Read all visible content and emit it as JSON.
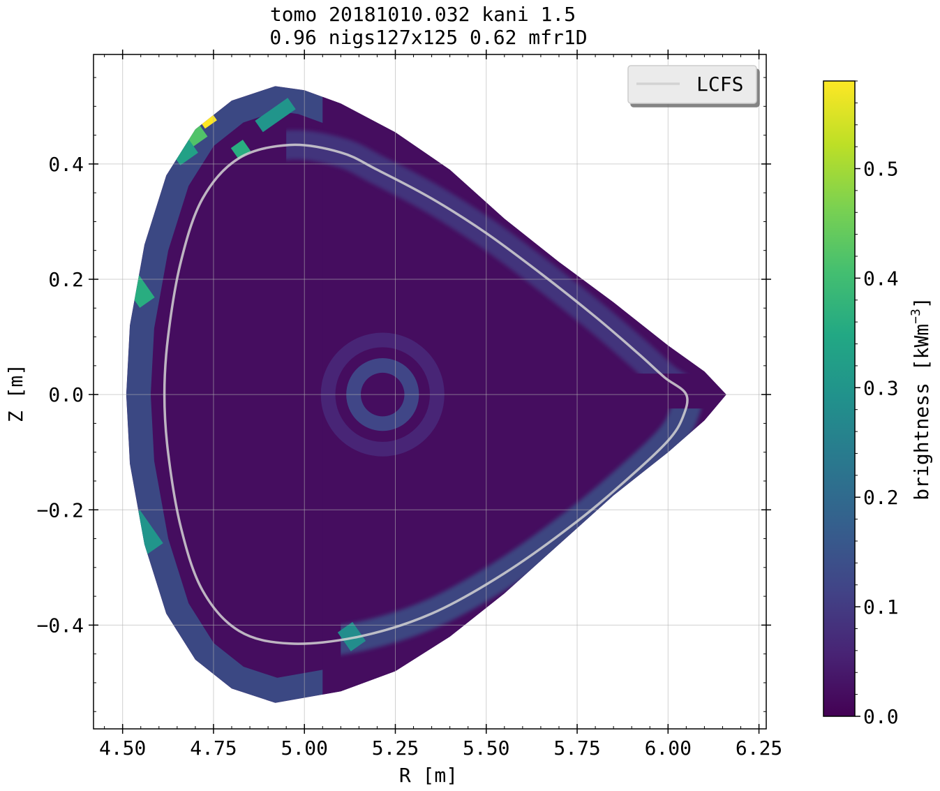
{
  "chart_data": {
    "type": "heatmap",
    "title_line1": "tomo 20181010.032 kani 1.5",
    "title_line2": "0.96  nigs127x125 0.62 mfr1D",
    "xlabel": "R [m]",
    "ylabel": "Z [m]",
    "xlim": [
      4.42,
      6.27
    ],
    "ylim": [
      -0.58,
      0.59
    ],
    "x_ticks": [
      4.5,
      4.75,
      5.0,
      5.25,
      5.5,
      5.75,
      6.0,
      6.25
    ],
    "x_tick_labels": [
      "4.50",
      "4.75",
      "5.00",
      "5.25",
      "5.50",
      "5.75",
      "6.00",
      "6.25"
    ],
    "y_ticks": [
      0.4,
      0.2,
      0.0,
      -0.2,
      -0.4
    ],
    "y_tick_labels": [
      "0.4",
      "0.2",
      "0.0",
      "−0.2",
      "−0.4"
    ],
    "grid": true,
    "legend": {
      "placement": "top-right",
      "entries": [
        {
          "label": "LCFS",
          "color": "#d3d3d3"
        }
      ]
    },
    "colorbar": {
      "label": "brightness [kWm",
      "label_sup": "−3",
      "label_end": "]",
      "range": [
        0.0,
        0.58
      ],
      "ticks": [
        0.0,
        0.1,
        0.2,
        0.3,
        0.4,
        0.5
      ],
      "tick_labels": [
        "0.0",
        "0.1",
        "0.2",
        "0.3",
        "0.4",
        "0.5"
      ],
      "colormap": "viridis"
    },
    "domain_boundary": [
      [
        4.92,
        0.535
      ],
      [
        5.0,
        0.528
      ],
      [
        5.1,
        0.505
      ],
      [
        5.25,
        0.455
      ],
      [
        5.4,
        0.39
      ],
      [
        5.55,
        0.305
      ],
      [
        5.7,
        0.23
      ],
      [
        5.85,
        0.16
      ],
      [
        6.0,
        0.085
      ],
      [
        6.1,
        0.04
      ],
      [
        6.16,
        0.0
      ],
      [
        6.1,
        -0.045
      ],
      [
        6.0,
        -0.1
      ],
      [
        5.85,
        -0.175
      ],
      [
        5.7,
        -0.26
      ],
      [
        5.55,
        -0.345
      ],
      [
        5.4,
        -0.42
      ],
      [
        5.25,
        -0.48
      ],
      [
        5.1,
        -0.515
      ],
      [
        4.92,
        -0.535
      ],
      [
        4.8,
        -0.51
      ],
      [
        4.7,
        -0.46
      ],
      [
        4.62,
        -0.38
      ],
      [
        4.56,
        -0.26
      ],
      [
        4.52,
        -0.12
      ],
      [
        4.51,
        0.0
      ],
      [
        4.52,
        0.12
      ],
      [
        4.56,
        0.26
      ],
      [
        4.62,
        0.38
      ],
      [
        4.7,
        0.46
      ],
      [
        4.8,
        0.51
      ]
    ],
    "lcfs": [
      [
        4.96,
        0.433
      ],
      [
        5.1,
        0.42
      ],
      [
        5.2,
        0.39
      ],
      [
        5.35,
        0.34
      ],
      [
        5.5,
        0.28
      ],
      [
        5.65,
        0.21
      ],
      [
        5.8,
        0.135
      ],
      [
        5.92,
        0.07
      ],
      [
        5.99,
        0.03
      ],
      [
        6.05,
        0.0
      ],
      [
        6.04,
        -0.04
      ],
      [
        6.0,
        -0.08
      ],
      [
        5.9,
        -0.14
      ],
      [
        5.75,
        -0.22
      ],
      [
        5.55,
        -0.31
      ],
      [
        5.35,
        -0.38
      ],
      [
        5.15,
        -0.42
      ],
      [
        4.96,
        -0.432
      ],
      [
        4.82,
        -0.41
      ],
      [
        4.72,
        -0.34
      ],
      [
        4.66,
        -0.23
      ],
      [
        4.625,
        -0.1
      ],
      [
        4.615,
        0.0
      ],
      [
        4.625,
        0.1
      ],
      [
        4.66,
        0.23
      ],
      [
        4.72,
        0.34
      ],
      [
        4.82,
        0.41
      ]
    ],
    "background_value": 0.02,
    "features": [
      {
        "kind": "edge-band",
        "name": "inner outer edge",
        "value": 0.16
      },
      {
        "kind": "edge-band",
        "name": "lcfs upper band",
        "value": 0.11
      },
      {
        "kind": "edge-band",
        "name": "lcfs lower band",
        "value": 0.16
      },
      {
        "kind": "ring",
        "name": "core ring",
        "center": [
          5.215,
          0.0
        ],
        "radii": [
          0.1,
          0.06
        ],
        "value": 0.12
      },
      {
        "kind": "ring",
        "name": "core halo",
        "center": [
          5.215,
          0.0
        ],
        "radii": [
          0.17,
          0.13
        ],
        "value": 0.06
      },
      {
        "kind": "blob",
        "name": "hot spot top",
        "center": [
          4.725,
          0.485
        ],
        "size": [
          0.02,
          0.02
        ],
        "value": 0.58
      },
      {
        "kind": "blob",
        "name": "spot top left",
        "center": [
          4.695,
          0.455
        ],
        "size": [
          0.025,
          0.02
        ],
        "value": 0.42
      },
      {
        "kind": "blob",
        "name": "spot top left 2",
        "center": [
          4.665,
          0.425
        ],
        "size": [
          0.03,
          0.02
        ],
        "value": 0.33
      },
      {
        "kind": "blob",
        "name": "spot mid left",
        "center": [
          4.545,
          0.18
        ],
        "size": [
          0.025,
          0.025
        ],
        "value": 0.36
      },
      {
        "kind": "blob",
        "name": "spot low left",
        "center": [
          4.555,
          -0.24
        ],
        "size": [
          0.03,
          0.035
        ],
        "value": 0.3
      },
      {
        "kind": "blob",
        "name": "spot top center",
        "center": [
          4.92,
          0.485
        ],
        "size": [
          0.055,
          0.012
        ],
        "value": 0.3
      },
      {
        "kind": "blob",
        "name": "spot top center 2",
        "center": [
          4.825,
          0.425
        ],
        "size": [
          0.02,
          0.012
        ],
        "value": 0.36
      },
      {
        "kind": "blob",
        "name": "spot bottom",
        "center": [
          5.13,
          -0.42
        ],
        "size": [
          0.025,
          0.02
        ],
        "value": 0.28
      }
    ]
  }
}
